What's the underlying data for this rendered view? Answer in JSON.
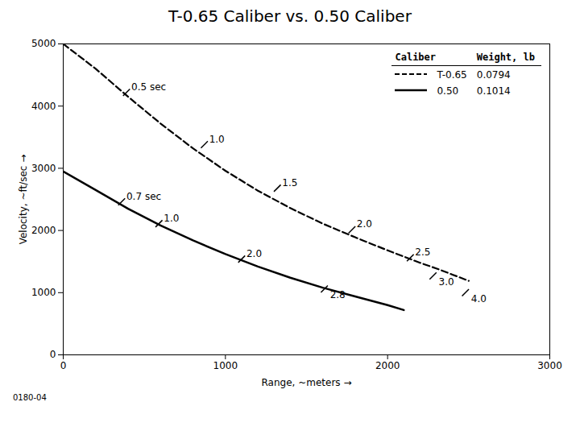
{
  "chart_data": {
    "type": "line",
    "title": "T-0.65 Caliber vs. 0.50 Caliber",
    "x_label": "Range, ~meters",
    "y_label": "Velocity, ~ft/sec",
    "xlim": [
      0,
      3000
    ],
    "ylim": [
      0,
      5000
    ],
    "xticks": [
      0,
      1000,
      2000,
      3000
    ],
    "yticks": [
      0,
      1000,
      2000,
      3000,
      4000,
      5000
    ],
    "grid": false,
    "legend": "upper right",
    "legend_columns": [
      "Caliber",
      "Weight, lb"
    ],
    "series": [
      {
        "name": "T-0.65",
        "weight": 0.0794,
        "color": "black",
        "line_style": "dashed",
        "x": [
          0,
          200,
          400,
          600,
          800,
          1000,
          1200,
          1400,
          1600,
          1800,
          2000,
          2100,
          2200,
          2300,
          2400,
          2500
        ],
        "values": [
          5000,
          4600,
          4150,
          3720,
          3320,
          2960,
          2640,
          2360,
          2110,
          1890,
          1680,
          1580,
          1480,
          1390,
          1290,
          1190
        ]
      },
      {
        "name": "0.50",
        "weight": 0.1014,
        "color": "black",
        "line_style": "solid",
        "x": [
          0,
          200,
          400,
          600,
          800,
          1000,
          1200,
          1400,
          1600,
          1800,
          2000,
          2100
        ],
        "values": [
          2950,
          2650,
          2350,
          2080,
          1840,
          1620,
          1420,
          1240,
          1080,
          940,
          800,
          720
        ]
      }
    ],
    "annotations": [
      {
        "series": "T-0.65",
        "text": "0.5 sec",
        "x": 390,
        "y": 4220
      },
      {
        "series": "T-0.65",
        "text": "1.0",
        "x": 870,
        "y": 3380
      },
      {
        "series": "T-0.65",
        "text": "1.5",
        "x": 1320,
        "y": 2680
      },
      {
        "series": "T-0.65",
        "text": "2.0",
        "x": 1780,
        "y": 2010
      },
      {
        "series": "T-0.65",
        "text": "2.5",
        "x": 2140,
        "y": 1560
      },
      {
        "series": "T-0.65",
        "text": "3.0",
        "x": 2280,
        "y": 1270
      },
      {
        "series": "T-0.65",
        "text": "4.0",
        "x": 2480,
        "y": 1000
      },
      {
        "series": "0.50",
        "text": "0.7 sec",
        "x": 360,
        "y": 2460
      },
      {
        "series": "0.50",
        "text": "1.0",
        "x": 590,
        "y": 2110
      },
      {
        "series": "0.50",
        "text": "2.0",
        "x": 1100,
        "y": 1540
      },
      {
        "series": "0.50",
        "text": "2.8",
        "x": 1610,
        "y": 1060
      }
    ],
    "footnote": "0180-04"
  }
}
